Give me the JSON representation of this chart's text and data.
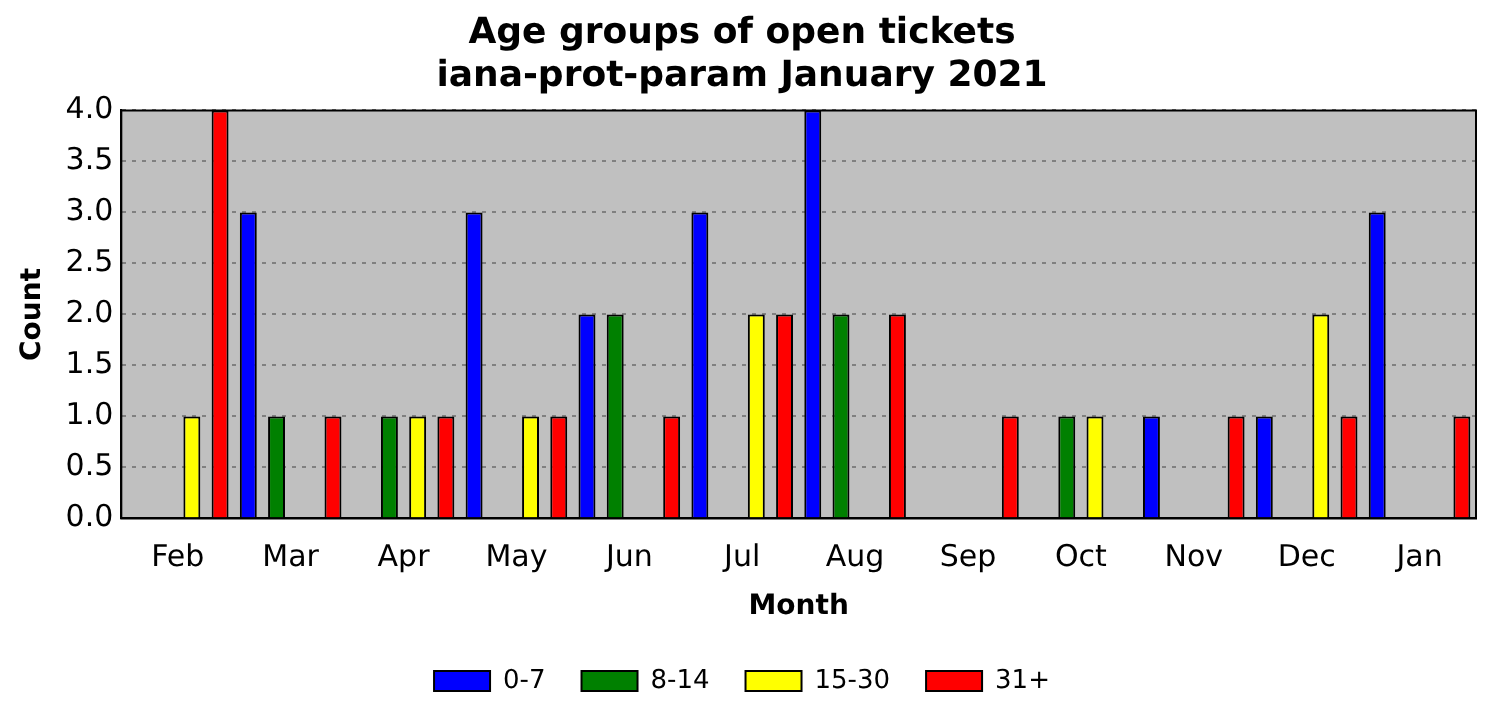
{
  "chart_data": {
    "type": "bar",
    "title": "Age groups of open tickets",
    "subtitle": "iana-prot-param January 2021",
    "xlabel": "Month",
    "ylabel": "Count",
    "categories": [
      "Feb",
      "Mar",
      "Apr",
      "May",
      "Jun",
      "Jul",
      "Aug",
      "Sep",
      "Oct",
      "Nov",
      "Dec",
      "Jan"
    ],
    "series": [
      {
        "name": "0-7",
        "color": "#0000ff",
        "values": [
          0,
          3,
          0,
          3,
          2,
          3,
          4,
          0,
          0,
          1,
          1,
          3
        ]
      },
      {
        "name": "8-14",
        "color": "#008000",
        "values": [
          0,
          1,
          1,
          0,
          2,
          0,
          2,
          0,
          1,
          0,
          0,
          0
        ]
      },
      {
        "name": "15-30",
        "color": "#ffff00",
        "values": [
          1,
          0,
          1,
          1,
          0,
          2,
          0,
          0,
          1,
          0,
          2,
          0
        ]
      },
      {
        "name": "31+",
        "color": "#ff0000",
        "values": [
          4,
          1,
          1,
          1,
          1,
          2,
          2,
          1,
          0,
          1,
          1,
          1
        ]
      }
    ],
    "ylim": [
      0,
      4
    ],
    "yticks": [
      {
        "value": 0,
        "label": "0.0"
      },
      {
        "value": 0.5,
        "label": "0.5"
      },
      {
        "value": 1,
        "label": "1.0"
      },
      {
        "value": 1.5,
        "label": "1.5"
      },
      {
        "value": 2,
        "label": "2.0"
      },
      {
        "value": 2.5,
        "label": "2.5"
      },
      {
        "value": 3,
        "label": "3.0"
      },
      {
        "value": 3.5,
        "label": "3.5"
      },
      {
        "value": 4,
        "label": "4.0"
      }
    ],
    "grid": "y",
    "legend": "bottom"
  }
}
